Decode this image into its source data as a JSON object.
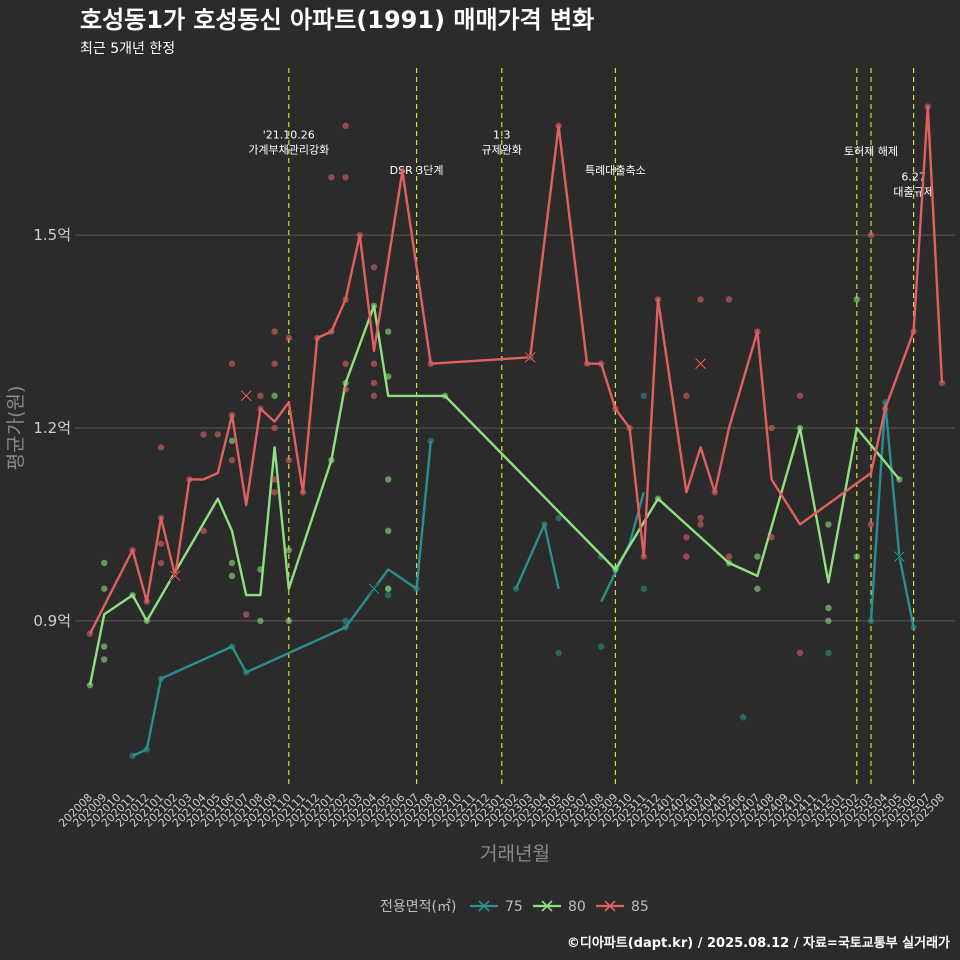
{
  "chart_data": {
    "type": "line",
    "title": "호성동1가 호성동신 아파트(1991) 매매가격 변화",
    "subtitle": "최근 5개년 한정",
    "xlabel": "거래년월",
    "ylabel": "평균가(원)",
    "caption": "©디아파트(dapt.kr) / 2025.08.12 / 자료=국토교통부 실거래가",
    "legend_title": "전용면적(㎡)",
    "legend_position": "bottom",
    "grid": true,
    "ylim": [
      0.64,
      1.76
    ],
    "y_ticks": [
      {
        "value": 0.9,
        "label": "0.9억"
      },
      {
        "value": 1.2,
        "label": "1.2억"
      },
      {
        "value": 1.5,
        "label": "1.5억"
      }
    ],
    "x": [
      "202008",
      "202009",
      "202010",
      "202011",
      "202012",
      "202101",
      "202102",
      "202103",
      "202104",
      "202105",
      "202106",
      "202107",
      "202108",
      "202109",
      "202110",
      "202111",
      "202112",
      "202201",
      "202202",
      "202203",
      "202204",
      "202205",
      "202206",
      "202207",
      "202208",
      "202209",
      "202210",
      "202211",
      "202212",
      "202301",
      "202302",
      "202303",
      "202304",
      "202305",
      "202306",
      "202307",
      "202308",
      "202309",
      "202310",
      "202311",
      "202312",
      "202401",
      "202402",
      "202403",
      "202404",
      "202405",
      "202406",
      "202407",
      "202408",
      "202409",
      "202410",
      "202411",
      "202412",
      "202501",
      "202502",
      "202503",
      "202504",
      "202505",
      "202506",
      "202507",
      "202508"
    ],
    "events": [
      {
        "x": 14,
        "label_lines": [
          "'21.10.26",
          "가계부채관리강화"
        ],
        "label_y": 1.65
      },
      {
        "x": 23,
        "label_lines": [
          "DSR 3단계"
        ],
        "label_y": 1.595
      },
      {
        "x": 29,
        "label_lines": [
          "1.3",
          "규제완화"
        ],
        "label_y": 1.65
      },
      {
        "x": 37,
        "label_lines": [
          "특례대출축소"
        ],
        "label_y": 1.595
      },
      {
        "x": 54,
        "label_lines": [],
        "label_y": 1.625
      },
      {
        "x": 55,
        "label_lines": [
          "토허제 해제"
        ],
        "label_y": 1.625
      },
      {
        "x": 58,
        "label_lines": [
          "6.27",
          "대출규제"
        ],
        "label_y": 1.585
      }
    ],
    "series": [
      {
        "name": "75",
        "color": "#2a8f8f",
        "segments": [
          [
            [
              3,
              0.69
            ],
            [
              4,
              0.7
            ],
            [
              5,
              0.81
            ],
            [
              10,
              0.86
            ],
            [
              11,
              0.82
            ],
            [
              18,
              0.89
            ],
            [
              21,
              0.98
            ],
            [
              23,
              0.95
            ],
            [
              24,
              1.18
            ]
          ],
          [
            [
              30,
              0.95
            ],
            [
              32,
              1.05
            ],
            [
              33,
              0.95
            ]
          ],
          [
            [
              36,
              0.93
            ],
            [
              38,
              1.02
            ],
            [
              39,
              1.1
            ]
          ],
          [
            [
              55,
              0.9
            ],
            [
              56,
              1.24
            ],
            [
              57,
              1.0
            ],
            [
              58,
              0.89
            ]
          ]
        ],
        "points": [
          [
            3,
            0.69
          ],
          [
            4,
            0.7
          ],
          [
            5,
            0.81
          ],
          [
            10,
            0.86
          ],
          [
            11,
            0.82
          ],
          [
            18,
            0.89
          ],
          [
            18,
            0.9
          ],
          [
            21,
            0.94
          ],
          [
            21,
            0.95
          ],
          [
            23,
            0.95
          ],
          [
            24,
            1.18
          ],
          [
            30,
            0.95
          ],
          [
            32,
            1.05
          ],
          [
            33,
            0.85
          ],
          [
            33,
            1.06
          ],
          [
            36,
            0.86
          ],
          [
            36,
            1.0
          ],
          [
            39,
            0.95
          ],
          [
            39,
            1.25
          ],
          [
            46,
            0.75
          ],
          [
            52,
            0.85
          ],
          [
            55,
            0.9
          ],
          [
            56,
            1.24
          ],
          [
            58,
            0.89
          ]
        ],
        "highlights": [
          [
            20,
            0.95
          ],
          [
            57,
            1.0
          ]
        ]
      },
      {
        "name": "80",
        "color": "#90e080",
        "segments": [
          [
            [
              0,
              0.8
            ],
            [
              1,
              0.91
            ],
            [
              3,
              0.94
            ],
            [
              4,
              0.9
            ],
            [
              9,
              1.09
            ],
            [
              10,
              1.04
            ],
            [
              11,
              0.94
            ],
            [
              12,
              0.94
            ],
            [
              13,
              1.17
            ],
            [
              14,
              0.95
            ],
            [
              17,
              1.15
            ],
            [
              18,
              1.27
            ],
            [
              20,
              1.39
            ],
            [
              21,
              1.25
            ],
            [
              25,
              1.25
            ],
            [
              37,
              0.98
            ],
            [
              40,
              1.09
            ],
            [
              45,
              0.99
            ],
            [
              47,
              0.97
            ],
            [
              50,
              1.2
            ],
            [
              52,
              0.96
            ],
            [
              54,
              1.2
            ],
            [
              57,
              1.12
            ]
          ]
        ],
        "points": [
          [
            0,
            0.8
          ],
          [
            1,
            0.84
          ],
          [
            1,
            0.86
          ],
          [
            1,
            0.95
          ],
          [
            1,
            0.99
          ],
          [
            3,
            0.94
          ],
          [
            4,
            0.9
          ],
          [
            10,
            0.97
          ],
          [
            10,
            0.99
          ],
          [
            10,
            1.18
          ],
          [
            12,
            0.9
          ],
          [
            12,
            0.98
          ],
          [
            13,
            1.25
          ],
          [
            14,
            0.9
          ],
          [
            14,
            1.01
          ],
          [
            17,
            1.15
          ],
          [
            18,
            1.27
          ],
          [
            20,
            1.39
          ],
          [
            21,
            1.35
          ],
          [
            21,
            1.28
          ],
          [
            21,
            1.12
          ],
          [
            21,
            1.04
          ],
          [
            21,
            0.95
          ],
          [
            25,
            1.25
          ],
          [
            37,
            0.98
          ],
          [
            40,
            1.09
          ],
          [
            45,
            0.99
          ],
          [
            47,
            1.0
          ],
          [
            47,
            0.95
          ],
          [
            50,
            1.2
          ],
          [
            52,
            1.05
          ],
          [
            52,
            0.92
          ],
          [
            52,
            0.9
          ],
          [
            54,
            1.4
          ],
          [
            54,
            1.0
          ],
          [
            57,
            1.12
          ]
        ],
        "highlights": []
      },
      {
        "name": "85",
        "color": "#e06060",
        "segments": [
          [
            [
              0,
              0.88
            ],
            [
              3,
              1.01
            ],
            [
              4,
              0.93
            ],
            [
              5,
              1.06
            ],
            [
              6,
              0.97
            ],
            [
              7,
              1.12
            ],
            [
              8,
              1.12
            ],
            [
              9,
              1.13
            ],
            [
              10,
              1.22
            ],
            [
              11,
              1.08
            ],
            [
              12,
              1.23
            ],
            [
              13,
              1.21
            ],
            [
              14,
              1.24
            ],
            [
              15,
              1.1
            ],
            [
              16,
              1.34
            ],
            [
              17,
              1.35
            ],
            [
              18,
              1.4
            ],
            [
              19,
              1.5
            ],
            [
              20,
              1.32
            ],
            [
              22,
              1.6
            ],
            [
              24,
              1.3
            ],
            [
              31,
              1.31
            ],
            [
              33,
              1.67
            ],
            [
              35,
              1.3
            ],
            [
              36,
              1.3
            ],
            [
              37,
              1.23
            ],
            [
              38,
              1.2
            ],
            [
              39,
              1.0
            ],
            [
              40,
              1.4
            ],
            [
              42,
              1.1
            ],
            [
              43,
              1.17
            ],
            [
              44,
              1.1
            ],
            [
              45,
              1.2
            ],
            [
              47,
              1.35
            ],
            [
              48,
              1.12
            ],
            [
              50,
              1.05
            ],
            [
              55,
              1.13
            ],
            [
              56,
              1.23
            ],
            [
              58,
              1.35
            ],
            [
              59,
              1.7
            ],
            [
              60,
              1.27
            ]
          ]
        ],
        "points": [
          [
            0,
            0.88
          ],
          [
            3,
            1.01
          ],
          [
            4,
            0.93
          ],
          [
            5,
            1.06
          ],
          [
            5,
            1.17
          ],
          [
            5,
            1.02
          ],
          [
            5,
            0.99
          ],
          [
            7,
            1.12
          ],
          [
            8,
            1.04
          ],
          [
            8,
            1.19
          ],
          [
            9,
            1.19
          ],
          [
            10,
            1.22
          ],
          [
            10,
            1.3
          ],
          [
            10,
            1.15
          ],
          [
            11,
            0.91
          ],
          [
            12,
            1.23
          ],
          [
            12,
            1.25
          ],
          [
            13,
            1.35
          ],
          [
            13,
            1.3
          ],
          [
            13,
            1.2
          ],
          [
            13,
            1.12
          ],
          [
            13,
            1.1
          ],
          [
            14,
            1.34
          ],
          [
            14,
            1.15
          ],
          [
            15,
            1.1
          ],
          [
            16,
            1.34
          ],
          [
            17,
            1.35
          ],
          [
            17,
            1.59
          ],
          [
            18,
            1.4
          ],
          [
            18,
            1.59
          ],
          [
            18,
            1.67
          ],
          [
            18,
            1.3
          ],
          [
            18,
            1.26
          ],
          [
            19,
            1.5
          ],
          [
            20,
            1.45
          ],
          [
            20,
            1.3
          ],
          [
            20,
            1.27
          ],
          [
            20,
            1.25
          ],
          [
            22,
            1.6
          ],
          [
            24,
            1.3
          ],
          [
            31,
            1.31
          ],
          [
            33,
            1.67
          ],
          [
            35,
            1.3
          ],
          [
            36,
            1.3
          ],
          [
            37,
            1.23
          ],
          [
            38,
            1.2
          ],
          [
            39,
            1.0
          ],
          [
            40,
            1.4
          ],
          [
            42,
            1.25
          ],
          [
            42,
            1.03
          ],
          [
            42,
            1.0
          ],
          [
            43,
            1.4
          ],
          [
            43,
            1.06
          ],
          [
            43,
            1.05
          ],
          [
            44,
            1.1
          ],
          [
            45,
            1.4
          ],
          [
            45,
            1.0
          ],
          [
            47,
            1.35
          ],
          [
            48,
            1.2
          ],
          [
            48,
            1.03
          ],
          [
            50,
            1.25
          ],
          [
            50,
            0.85
          ],
          [
            55,
            1.5
          ],
          [
            55,
            1.05
          ],
          [
            56,
            1.23
          ],
          [
            58,
            1.35
          ],
          [
            59,
            1.7
          ],
          [
            60,
            1.27
          ]
        ],
        "highlights": [
          [
            11,
            1.25
          ],
          [
            6,
            0.97
          ],
          [
            31,
            1.31
          ],
          [
            43,
            1.3
          ]
        ]
      }
    ]
  }
}
